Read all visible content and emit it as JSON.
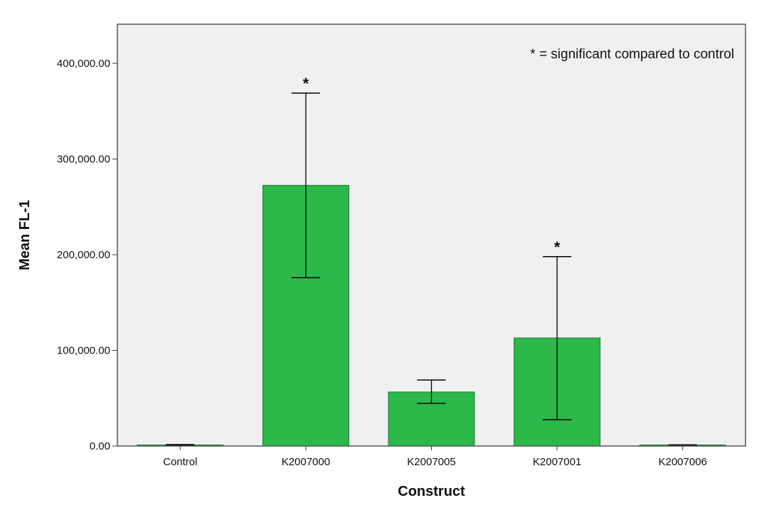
{
  "chart_data": {
    "type": "bar",
    "title": "",
    "xlabel": "Construct",
    "ylabel": "Mean FL-1",
    "categories": [
      "Control",
      "K2007000",
      "K2007005",
      "K2007001",
      "K2007006"
    ],
    "values": [
      1000,
      272500,
      56500,
      113000,
      800
    ],
    "error_low": [
      500,
      176000,
      44500,
      27500,
      400
    ],
    "error_high": [
      1500,
      369000,
      69000,
      198000,
      1200
    ],
    "significant": [
      false,
      true,
      false,
      true,
      false
    ],
    "significance_marker": "*",
    "ylim": [
      0,
      400000
    ],
    "yticks": [
      0,
      100000,
      200000,
      300000,
      400000
    ],
    "ytick_labels": [
      "0.00",
      "100,000.00",
      "200,000.00",
      "300,000.00",
      "400,000.00"
    ],
    "annotation": "* = significant compared to control",
    "grid": false,
    "colors": {
      "bar_fill": "#2db84a",
      "bar_stroke": "#1e7a32",
      "plot_background": "#f0f0f0",
      "frame": "#555555",
      "error_bar": "#000000"
    }
  }
}
